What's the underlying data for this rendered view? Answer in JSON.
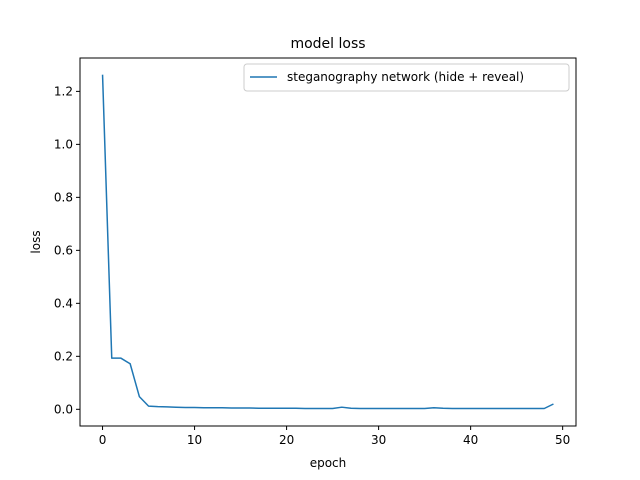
{
  "chart_data": {
    "type": "line",
    "title": "model loss",
    "xlabel": "epoch",
    "ylabel": "loss",
    "xlim": [
      -2.45,
      51.45
    ],
    "ylim": [
      -0.063,
      1.326
    ],
    "xticks": [
      0,
      10,
      20,
      30,
      40,
      50
    ],
    "xtick_labels": [
      "0",
      "10",
      "20",
      "30",
      "40",
      "50"
    ],
    "yticks": [
      0.0,
      0.2,
      0.4,
      0.6,
      0.8,
      1.0,
      1.2
    ],
    "ytick_labels": [
      "0.0",
      "0.2",
      "0.4",
      "0.6",
      "0.8",
      "1.0",
      "1.2"
    ],
    "grid": false,
    "legend_position": "top-right",
    "series": [
      {
        "name": "steganography network (hide + reveal)",
        "color": "#1f77b4",
        "x": [
          0,
          1,
          2,
          3,
          4,
          5,
          6,
          7,
          8,
          9,
          10,
          11,
          12,
          13,
          14,
          15,
          16,
          17,
          18,
          19,
          20,
          21,
          22,
          23,
          24,
          25,
          26,
          27,
          28,
          29,
          30,
          31,
          32,
          33,
          34,
          35,
          36,
          37,
          38,
          39,
          40,
          41,
          42,
          43,
          44,
          45,
          46,
          47,
          48,
          49
        ],
        "y": [
          1.263,
          0.193,
          0.193,
          0.172,
          0.048,
          0.012,
          0.01,
          0.009,
          0.008,
          0.007,
          0.007,
          0.006,
          0.006,
          0.006,
          0.005,
          0.005,
          0.005,
          0.004,
          0.004,
          0.004,
          0.004,
          0.004,
          0.003,
          0.003,
          0.003,
          0.003,
          0.008,
          0.004,
          0.003,
          0.003,
          0.003,
          0.003,
          0.003,
          0.003,
          0.003,
          0.003,
          0.006,
          0.004,
          0.003,
          0.003,
          0.003,
          0.003,
          0.003,
          0.003,
          0.003,
          0.003,
          0.003,
          0.003,
          0.003,
          0.02
        ]
      }
    ]
  }
}
